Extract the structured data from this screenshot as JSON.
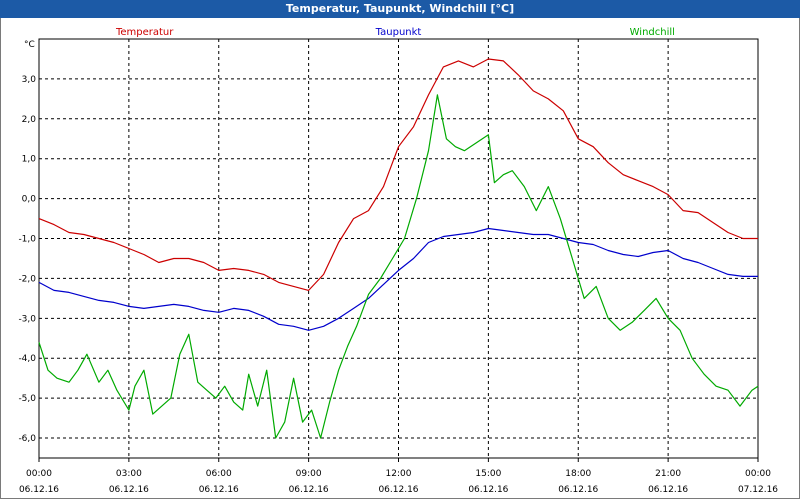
{
  "window": {
    "title": "Temperatur, Taupunkt, Windchill [°C]"
  },
  "chart_data": {
    "type": "line",
    "title": "Temperatur, Taupunkt, Windchill [°C]",
    "ylabel": "°C",
    "ylim": [
      -6.5,
      4.0
    ],
    "xlim": [
      0,
      24
    ],
    "grid": true,
    "y_ticks": [
      3,
      2,
      1,
      0,
      -1,
      -2,
      -3,
      -4,
      -5,
      -6
    ],
    "y_tick_labels": [
      "3,0",
      "2,0",
      "1,0",
      "0,0",
      "-1,0",
      "-2,0",
      "-3,0",
      "-4,0",
      "-5,0",
      "-6,0"
    ],
    "x_ticks": [
      {
        "hour": 0,
        "time": "00:00",
        "date": "06.12.16"
      },
      {
        "hour": 3,
        "time": "03:00",
        "date": "06.12.16"
      },
      {
        "hour": 6,
        "time": "06:00",
        "date": "06.12.16"
      },
      {
        "hour": 9,
        "time": "09:00",
        "date": "06.12.16"
      },
      {
        "hour": 12,
        "time": "12:00",
        "date": "06.12.16"
      },
      {
        "hour": 15,
        "time": "15:00",
        "date": "06.12.16"
      },
      {
        "hour": 18,
        "time": "18:00",
        "date": "06.12.16"
      },
      {
        "hour": 21,
        "time": "21:00",
        "date": "06.12.16"
      },
      {
        "hour": 24,
        "time": "00:00",
        "date": "07.12.16"
      }
    ],
    "series": [
      {
        "name": "Temperatur",
        "color": "#cc0000",
        "x": [
          0,
          0.5,
          1,
          1.5,
          2,
          2.5,
          3,
          3.5,
          4,
          4.5,
          5,
          5.5,
          6,
          6.5,
          7,
          7.5,
          8,
          8.5,
          9,
          9.5,
          10,
          10.5,
          11,
          11.5,
          12,
          12.5,
          13,
          13.5,
          14,
          14.5,
          15,
          15.5,
          16,
          16.5,
          17,
          17.5,
          18,
          18.5,
          19,
          19.5,
          20,
          20.5,
          21,
          21.5,
          22,
          22.5,
          23,
          23.5,
          24
        ],
        "values": [
          -0.5,
          -0.65,
          -0.85,
          -0.9,
          -1.0,
          -1.1,
          -1.25,
          -1.4,
          -1.6,
          -1.5,
          -1.5,
          -1.6,
          -1.8,
          -1.75,
          -1.8,
          -1.9,
          -2.1,
          -2.2,
          -2.3,
          -1.9,
          -1.1,
          -0.5,
          -0.3,
          0.3,
          1.3,
          1.8,
          2.6,
          3.3,
          3.45,
          3.3,
          3.5,
          3.45,
          3.1,
          2.7,
          2.5,
          2.2,
          1.5,
          1.3,
          0.9,
          0.6,
          0.45,
          0.3,
          0.1,
          -0.3,
          -0.35,
          -0.6,
          -0.85,
          -1.0,
          -1.0
        ]
      },
      {
        "name": "Taupunkt",
        "color": "#0000cc",
        "x": [
          0,
          0.5,
          1,
          1.5,
          2,
          2.5,
          3,
          3.5,
          4,
          4.5,
          5,
          5.5,
          6,
          6.5,
          7,
          7.5,
          8,
          8.5,
          9,
          9.5,
          10,
          10.5,
          11,
          11.5,
          12,
          12.5,
          13,
          13.5,
          14,
          14.5,
          15,
          15.5,
          16,
          16.5,
          17,
          17.5,
          18,
          18.5,
          19,
          19.5,
          20,
          20.5,
          21,
          21.5,
          22,
          22.5,
          23,
          23.5,
          24
        ],
        "values": [
          -2.1,
          -2.3,
          -2.35,
          -2.45,
          -2.55,
          -2.6,
          -2.7,
          -2.75,
          -2.7,
          -2.65,
          -2.7,
          -2.8,
          -2.85,
          -2.75,
          -2.8,
          -2.95,
          -3.15,
          -3.2,
          -3.3,
          -3.2,
          -3.0,
          -2.75,
          -2.5,
          -2.15,
          -1.8,
          -1.5,
          -1.1,
          -0.95,
          -0.9,
          -0.85,
          -0.75,
          -0.8,
          -0.85,
          -0.9,
          -0.9,
          -1.0,
          -1.1,
          -1.15,
          -1.3,
          -1.4,
          -1.45,
          -1.35,
          -1.3,
          -1.5,
          -1.6,
          -1.75,
          -1.9,
          -1.95,
          -1.95
        ]
      },
      {
        "name": "Windchill",
        "color": "#00aa00",
        "x": [
          0,
          0.3,
          0.6,
          1.0,
          1.3,
          1.6,
          2.0,
          2.3,
          2.6,
          3.0,
          3.2,
          3.5,
          3.8,
          4.1,
          4.4,
          4.7,
          5.0,
          5.3,
          5.6,
          5.9,
          6.2,
          6.5,
          6.8,
          7.0,
          7.3,
          7.6,
          7.9,
          8.2,
          8.5,
          8.8,
          9.1,
          9.4,
          9.7,
          10.0,
          10.3,
          10.6,
          11.0,
          11.4,
          11.8,
          12.2,
          12.6,
          13.0,
          13.3,
          13.6,
          13.9,
          14.2,
          14.6,
          15.0,
          15.2,
          15.5,
          15.8,
          16.2,
          16.6,
          17.0,
          17.4,
          17.8,
          18.2,
          18.6,
          19.0,
          19.4,
          19.8,
          20.2,
          20.6,
          21.0,
          21.4,
          21.8,
          22.2,
          22.6,
          23.0,
          23.4,
          23.8,
          24.0
        ],
        "values": [
          -3.6,
          -4.3,
          -4.5,
          -4.6,
          -4.3,
          -3.9,
          -4.6,
          -4.3,
          -4.8,
          -5.3,
          -4.7,
          -4.3,
          -5.4,
          -5.2,
          -5.0,
          -3.9,
          -3.4,
          -4.6,
          -4.8,
          -5.0,
          -4.7,
          -5.1,
          -5.3,
          -4.4,
          -5.2,
          -4.3,
          -6.0,
          -5.6,
          -4.5,
          -5.6,
          -5.3,
          -6.0,
          -5.1,
          -4.3,
          -3.7,
          -3.2,
          -2.4,
          -2.0,
          -1.5,
          -1.0,
          0.0,
          1.2,
          2.6,
          1.5,
          1.3,
          1.2,
          1.4,
          1.6,
          0.4,
          0.6,
          0.7,
          0.3,
          -0.3,
          0.3,
          -0.5,
          -1.5,
          -2.5,
          -2.2,
          -3.0,
          -3.3,
          -3.1,
          -2.8,
          -2.5,
          -3.0,
          -3.3,
          -4.0,
          -4.4,
          -4.7,
          -4.8,
          -5.2,
          -4.8,
          -4.7
        ]
      }
    ]
  }
}
